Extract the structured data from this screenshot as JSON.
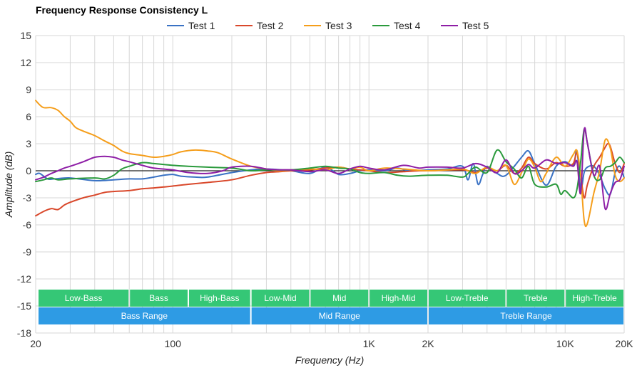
{
  "chart_data": {
    "type": "line",
    "title": "Frequency Response Consistency L",
    "xlabel": "Frequency (Hz)",
    "ylabel": "Amplitude (dB)",
    "xscale": "log",
    "xlim": [
      20,
      20000
    ],
    "ylim": [
      -18,
      15
    ],
    "x_ticks": [
      {
        "value": 20,
        "label": "20"
      },
      {
        "value": 100,
        "label": "100"
      },
      {
        "value": 1000,
        "label": "1K"
      },
      {
        "value": 2000,
        "label": "2K"
      },
      {
        "value": 10000,
        "label": "10K"
      },
      {
        "value": 20000,
        "label": "20K"
      }
    ],
    "y_ticks": [
      15,
      12,
      9,
      6,
      3,
      0,
      -3,
      -6,
      -9,
      -12,
      -15,
      -18
    ],
    "grid": true,
    "legend_position": "top",
    "series": [
      {
        "name": "Test 1",
        "color": "#3a72c4",
        "points": [
          [
            20,
            -0.4
          ],
          [
            21,
            -0.3
          ],
          [
            23,
            -0.9
          ],
          [
            25,
            -0.9
          ],
          [
            30,
            -0.8
          ],
          [
            40,
            -1.1
          ],
          [
            50,
            -1.0
          ],
          [
            60,
            -0.9
          ],
          [
            70,
            -0.9
          ],
          [
            80,
            -0.7
          ],
          [
            90,
            -0.5
          ],
          [
            100,
            -0.4
          ],
          [
            110,
            -0.6
          ],
          [
            130,
            -0.7
          ],
          [
            150,
            -0.7
          ],
          [
            200,
            -0.2
          ],
          [
            250,
            0.1
          ],
          [
            300,
            0.2
          ],
          [
            400,
            0.0
          ],
          [
            500,
            -0.3
          ],
          [
            600,
            0.4
          ],
          [
            700,
            -0.4
          ],
          [
            800,
            -0.3
          ],
          [
            900,
            0.0
          ],
          [
            1000,
            0.1
          ],
          [
            1200,
            0.0
          ],
          [
            1400,
            0.3
          ],
          [
            1600,
            0.0
          ],
          [
            2000,
            0.1
          ],
          [
            2500,
            0.2
          ],
          [
            3000,
            0.5
          ],
          [
            3200,
            -1.0
          ],
          [
            3400,
            0.8
          ],
          [
            3600,
            -1.5
          ],
          [
            3800,
            -0.4
          ],
          [
            4000,
            0.5
          ],
          [
            4500,
            -0.3
          ],
          [
            5000,
            -0.5
          ],
          [
            6000,
            1.5
          ],
          [
            6500,
            2.2
          ],
          [
            7000,
            0.8
          ],
          [
            8000,
            -1.6
          ],
          [
            9000,
            0.5
          ],
          [
            10000,
            1.0
          ],
          [
            11000,
            0.6
          ],
          [
            11500,
            2.2
          ],
          [
            12000,
            -2.0
          ],
          [
            12500,
            -0.2
          ],
          [
            13000,
            0.4
          ],
          [
            14000,
            0.5
          ],
          [
            15000,
            -0.5
          ],
          [
            16000,
            -2.0
          ],
          [
            17000,
            -2.6
          ],
          [
            18000,
            -0.2
          ],
          [
            19000,
            0.5
          ],
          [
            20000,
            -0.8
          ]
        ]
      },
      {
        "name": "Test 2",
        "color": "#d9482b",
        "points": [
          [
            20,
            -5.0
          ],
          [
            22,
            -4.5
          ],
          [
            24,
            -4.2
          ],
          [
            26,
            -4.3
          ],
          [
            28,
            -3.8
          ],
          [
            30,
            -3.5
          ],
          [
            35,
            -3.0
          ],
          [
            40,
            -2.7
          ],
          [
            45,
            -2.4
          ],
          [
            50,
            -2.3
          ],
          [
            60,
            -2.2
          ],
          [
            70,
            -2.0
          ],
          [
            80,
            -1.9
          ],
          [
            90,
            -1.8
          ],
          [
            100,
            -1.7
          ],
          [
            120,
            -1.5
          ],
          [
            150,
            -1.3
          ],
          [
            200,
            -1.0
          ],
          [
            250,
            -0.5
          ],
          [
            300,
            -0.2
          ],
          [
            350,
            -0.1
          ],
          [
            400,
            0.0
          ],
          [
            500,
            0.1
          ],
          [
            600,
            0.3
          ],
          [
            700,
            0.4
          ],
          [
            800,
            0.2
          ],
          [
            900,
            0.1
          ],
          [
            1000,
            0.0
          ],
          [
            1200,
            -0.2
          ],
          [
            1500,
            -0.1
          ],
          [
            1800,
            0.0
          ],
          [
            2000,
            0.0
          ],
          [
            3000,
            0.1
          ],
          [
            3500,
            -0.2
          ],
          [
            4000,
            0.3
          ],
          [
            4500,
            0.0
          ],
          [
            5000,
            0.6
          ],
          [
            5500,
            -0.3
          ],
          [
            6000,
            0.3
          ],
          [
            6500,
            1.5
          ],
          [
            7000,
            0.8
          ],
          [
            8000,
            0.2
          ],
          [
            9000,
            0.9
          ],
          [
            10000,
            0.5
          ],
          [
            11000,
            0.8
          ],
          [
            11500,
            2.0
          ],
          [
            12000,
            -0.5
          ],
          [
            12500,
            -3.0
          ],
          [
            13000,
            -1.5
          ],
          [
            14000,
            0.5
          ],
          [
            15000,
            1.5
          ],
          [
            16000,
            2.6
          ],
          [
            16500,
            3.0
          ],
          [
            17000,
            2.7
          ],
          [
            18000,
            0.8
          ],
          [
            19000,
            -0.2
          ],
          [
            20000,
            0.8
          ]
        ]
      },
      {
        "name": "Test 3",
        "color": "#f59e1b",
        "points": [
          [
            20,
            7.8
          ],
          [
            21,
            7.3
          ],
          [
            22,
            7.0
          ],
          [
            24,
            7.0
          ],
          [
            26,
            6.7
          ],
          [
            28,
            6.0
          ],
          [
            30,
            5.5
          ],
          [
            32,
            4.8
          ],
          [
            35,
            4.4
          ],
          [
            40,
            3.9
          ],
          [
            45,
            3.3
          ],
          [
            50,
            2.8
          ],
          [
            55,
            2.2
          ],
          [
            60,
            1.9
          ],
          [
            70,
            1.7
          ],
          [
            80,
            1.5
          ],
          [
            90,
            1.6
          ],
          [
            100,
            1.8
          ],
          [
            110,
            2.1
          ],
          [
            130,
            2.3
          ],
          [
            150,
            2.2
          ],
          [
            170,
            2.0
          ],
          [
            200,
            1.3
          ],
          [
            250,
            0.5
          ],
          [
            300,
            0.2
          ],
          [
            350,
            0.0
          ],
          [
            400,
            0.1
          ],
          [
            500,
            0.2
          ],
          [
            600,
            0.1
          ],
          [
            700,
            0.4
          ],
          [
            800,
            0.2
          ],
          [
            900,
            0.4
          ],
          [
            1000,
            0.0
          ],
          [
            1200,
            0.3
          ],
          [
            1500,
            0.2
          ],
          [
            2000,
            0.0
          ],
          [
            2500,
            0.1
          ],
          [
            3000,
            0.2
          ],
          [
            3200,
            0.0
          ],
          [
            3500,
            -0.3
          ],
          [
            4000,
            0.4
          ],
          [
            4500,
            0.0
          ],
          [
            5000,
            0.6
          ],
          [
            5500,
            -1.5
          ],
          [
            6000,
            -0.2
          ],
          [
            6500,
            1.3
          ],
          [
            7000,
            0.4
          ],
          [
            7500,
            -1.2
          ],
          [
            8000,
            -0.3
          ],
          [
            9000,
            1.5
          ],
          [
            10000,
            0.5
          ],
          [
            11000,
            1.8
          ],
          [
            11500,
            2.2
          ],
          [
            12000,
            -0.5
          ],
          [
            12500,
            -5.5
          ],
          [
            13000,
            -5.8
          ],
          [
            14000,
            -2.5
          ],
          [
            15000,
            0.0
          ],
          [
            16000,
            3.4
          ],
          [
            17000,
            2.5
          ],
          [
            18000,
            -0.5
          ],
          [
            19000,
            -1.2
          ],
          [
            20000,
            -0.8
          ]
        ]
      },
      {
        "name": "Test 4",
        "color": "#2a9a3c",
        "points": [
          [
            20,
            -1.2
          ],
          [
            22,
            -1.0
          ],
          [
            24,
            -0.8
          ],
          [
            26,
            -1.0
          ],
          [
            30,
            -0.9
          ],
          [
            40,
            -0.8
          ],
          [
            45,
            -0.9
          ],
          [
            50,
            -0.5
          ],
          [
            55,
            0.2
          ],
          [
            60,
            0.5
          ],
          [
            70,
            0.9
          ],
          [
            80,
            0.8
          ],
          [
            100,
            0.6
          ],
          [
            120,
            0.5
          ],
          [
            150,
            0.4
          ],
          [
            200,
            0.3
          ],
          [
            250,
            0.0
          ],
          [
            300,
            0.1
          ],
          [
            400,
            0.1
          ],
          [
            500,
            0.3
          ],
          [
            600,
            0.5
          ],
          [
            700,
            0.3
          ],
          [
            800,
            0.2
          ],
          [
            900,
            -0.2
          ],
          [
            1000,
            -0.3
          ],
          [
            1200,
            -0.2
          ],
          [
            1400,
            -0.5
          ],
          [
            1600,
            -0.6
          ],
          [
            2000,
            -0.5
          ],
          [
            2500,
            -0.5
          ],
          [
            3000,
            -0.7
          ],
          [
            3200,
            -0.3
          ],
          [
            3500,
            0.4
          ],
          [
            4000,
            -0.2
          ],
          [
            4500,
            2.3
          ],
          [
            5000,
            1.0
          ],
          [
            5500,
            0.2
          ],
          [
            6000,
            -0.8
          ],
          [
            6500,
            0.5
          ],
          [
            7000,
            -1.5
          ],
          [
            8000,
            -1.8
          ],
          [
            9000,
            -1.5
          ],
          [
            9500,
            -2.6
          ],
          [
            10000,
            -2.2
          ],
          [
            11000,
            -3.0
          ],
          [
            11500,
            -2.0
          ],
          [
            12000,
            1.0
          ],
          [
            12500,
            4.6
          ],
          [
            13000,
            3.0
          ],
          [
            14000,
            -0.5
          ],
          [
            15000,
            -1.0
          ],
          [
            16000,
            0.3
          ],
          [
            17000,
            0.5
          ],
          [
            18000,
            0.9
          ],
          [
            19000,
            1.5
          ],
          [
            20000,
            0.9
          ]
        ]
      },
      {
        "name": "Test 5",
        "color": "#8e1ea6",
        "points": [
          [
            20,
            -1.0
          ],
          [
            22,
            -0.7
          ],
          [
            24,
            -0.3
          ],
          [
            26,
            0.0
          ],
          [
            28,
            0.3
          ],
          [
            30,
            0.5
          ],
          [
            35,
            1.0
          ],
          [
            40,
            1.5
          ],
          [
            45,
            1.6
          ],
          [
            50,
            1.5
          ],
          [
            55,
            1.2
          ],
          [
            60,
            1.0
          ],
          [
            70,
            0.6
          ],
          [
            80,
            0.3
          ],
          [
            100,
            0.1
          ],
          [
            120,
            -0.2
          ],
          [
            150,
            -0.3
          ],
          [
            180,
            0.0
          ],
          [
            200,
            0.4
          ],
          [
            250,
            0.5
          ],
          [
            300,
            0.2
          ],
          [
            350,
            0.1
          ],
          [
            400,
            0.1
          ],
          [
            500,
            -0.1
          ],
          [
            600,
            0.1
          ],
          [
            700,
            -0.3
          ],
          [
            800,
            0.2
          ],
          [
            900,
            0.5
          ],
          [
            1000,
            0.3
          ],
          [
            1200,
            0.1
          ],
          [
            1500,
            0.6
          ],
          [
            1800,
            0.3
          ],
          [
            2000,
            0.4
          ],
          [
            2500,
            0.4
          ],
          [
            3000,
            0.3
          ],
          [
            3500,
            0.8
          ],
          [
            4000,
            0.4
          ],
          [
            4500,
            -0.2
          ],
          [
            5000,
            1.2
          ],
          [
            5500,
            -0.3
          ],
          [
            6000,
            0.0
          ],
          [
            6500,
            0.7
          ],
          [
            7000,
            0.3
          ],
          [
            8000,
            1.2
          ],
          [
            9000,
            0.8
          ],
          [
            10000,
            0.9
          ],
          [
            11000,
            0.5
          ],
          [
            11500,
            1.0
          ],
          [
            12000,
            -2.5
          ],
          [
            12500,
            4.5
          ],
          [
            13000,
            3.0
          ],
          [
            14000,
            -0.5
          ],
          [
            15000,
            0.5
          ],
          [
            16000,
            -4.2
          ],
          [
            17000,
            -2.5
          ],
          [
            18000,
            -1.3
          ],
          [
            19000,
            -1.0
          ],
          [
            20000,
            0.5
          ]
        ]
      }
    ],
    "bands_row1": [
      {
        "label": "Low-Bass",
        "start": 20,
        "end": 60
      },
      {
        "label": "Bass",
        "start": 60,
        "end": 120
      },
      {
        "label": "High-Bass",
        "start": 120,
        "end": 250
      },
      {
        "label": "Low-Mid",
        "start": 250,
        "end": 500
      },
      {
        "label": "Mid",
        "start": 500,
        "end": 1000
      },
      {
        "label": "High-Mid",
        "start": 1000,
        "end": 2000
      },
      {
        "label": "Low-Treble",
        "start": 2000,
        "end": 5000
      },
      {
        "label": "Treble",
        "start": 5000,
        "end": 10000
      },
      {
        "label": "High-Treble",
        "start": 10000,
        "end": 20000
      }
    ],
    "bands_row2": [
      {
        "label": "Bass Range",
        "start": 20,
        "end": 250
      },
      {
        "label": "Mid Range",
        "start": 250,
        "end": 2000
      },
      {
        "label": "Treble Range",
        "start": 2000,
        "end": 20000
      }
    ],
    "band_colors": {
      "row1": "#35c776",
      "row2": "#2e9be4"
    }
  }
}
